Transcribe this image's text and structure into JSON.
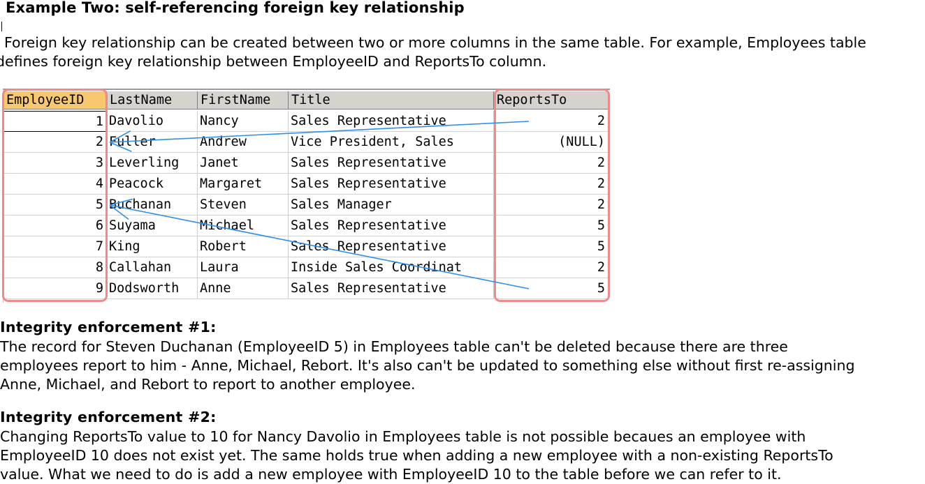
{
  "heading": "Example Two: self-referencing foreign key relationship",
  "intro": [
    "Foreign key relationship can be created between two or more columns in the same table. For example, Employees table",
    "defines foreign key relationship between EmployeeID and ReportsTo column."
  ],
  "table": {
    "columns": [
      "EmployeeID",
      "LastName",
      "FirstName",
      "Title",
      "ReportsTo"
    ],
    "rows": [
      [
        "1",
        "Davolio",
        "Nancy",
        "Sales Representative",
        "2"
      ],
      [
        "2",
        "Fuller",
        "Andrew",
        "Vice President, Sales",
        "(NULL)"
      ],
      [
        "3",
        "Leverling",
        "Janet",
        "Sales Representative",
        "2"
      ],
      [
        "4",
        "Peacock",
        "Margaret",
        "Sales Representative",
        "2"
      ],
      [
        "5",
        "Buchanan",
        "Steven",
        "Sales Manager",
        "2"
      ],
      [
        "6",
        "Suyama",
        "Michael",
        "Sales Representative",
        "5"
      ],
      [
        "7",
        "King",
        "Robert",
        "Sales Representative",
        "5"
      ],
      [
        "8",
        "Callahan",
        "Laura",
        "Inside Sales Coordinat",
        "2"
      ],
      [
        "9",
        "Dodsworth",
        "Anne",
        "Sales Representative",
        "5"
      ]
    ],
    "annotation_color": "#f08a8a",
    "arrow_color": "#2f8fe8"
  },
  "section1": {
    "title": "Integrity enforcement #1:",
    "lines": [
      "The record for Steven Duchanan (EmployeeID 5) in Employees table can't be deleted because there are three",
      "employees report to him - Anne, Michael, Rebort. It's also can't be updated to something else without first re-assigning",
      "Anne, Michael, and Rebort to report to another employee."
    ]
  },
  "section2": {
    "title": "Integrity enforcement #2:",
    "lines": [
      "Changing ReportsTo value to 10 for Nancy Davolio in Employees table is not possible becaues an employee with",
      "EmployeeID 10 does not exist yet. The same holds true when adding a new employee with a non-existing ReportsTo",
      "value. What we need to do is add a new employee with EmployeeID 10 to the table before we can refer to it."
    ]
  }
}
